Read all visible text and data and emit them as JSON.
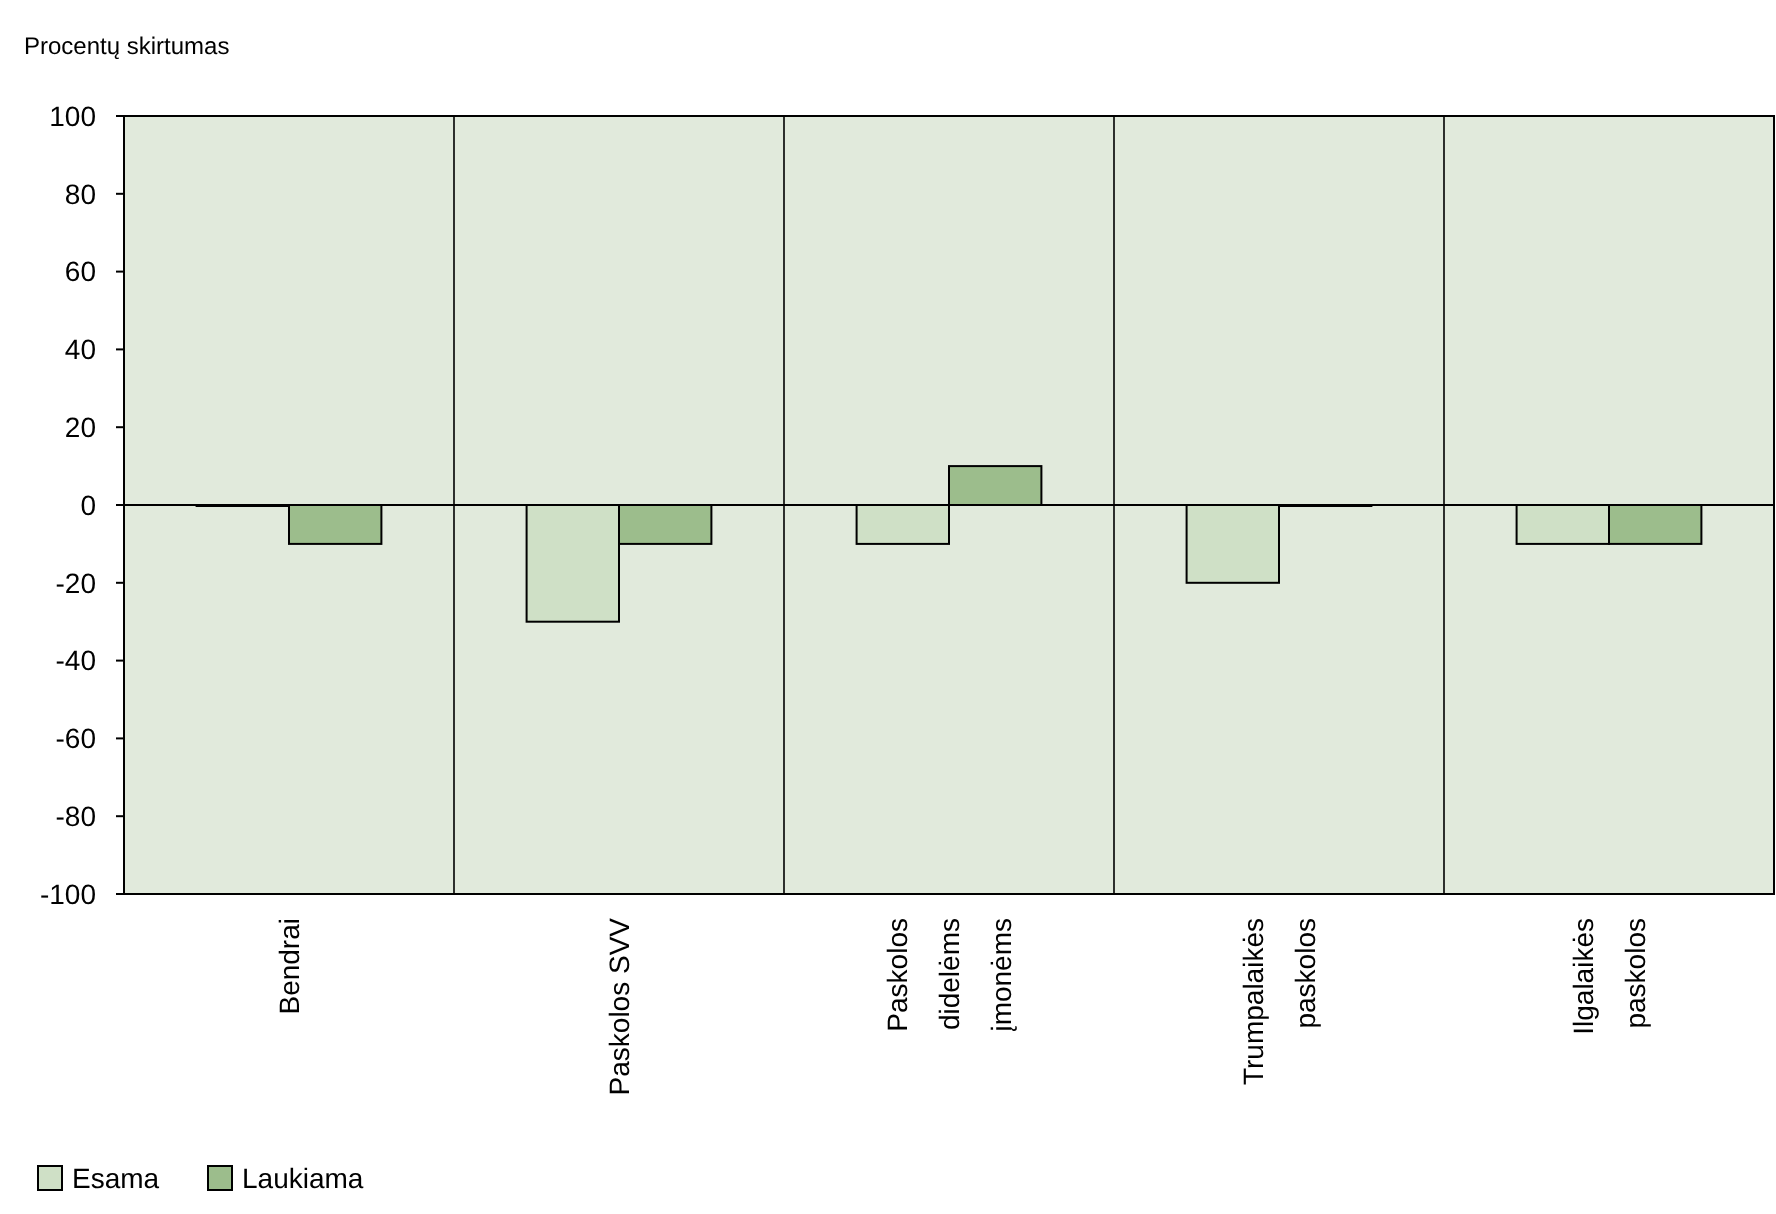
{
  "chart_data": {
    "type": "bar",
    "title": "Procentų skirtumas",
    "categories": [
      "Bendrai",
      "Paskolos SVV",
      "Paskolos didelėms įmonėms",
      "Trumpalaikės paskolos",
      "Ilgalaikės paskolos"
    ],
    "series": [
      {
        "name": "Esama",
        "color": "#cfe0c6",
        "values": [
          0,
          -30,
          -10,
          -20,
          -10
        ]
      },
      {
        "name": "Laukiama",
        "color": "#9cbd8c",
        "values": [
          -10,
          -10,
          10,
          0,
          -10
        ]
      }
    ],
    "ylim": [
      -100,
      100
    ],
    "yticks": [
      -100,
      -80,
      -60,
      -40,
      -20,
      0,
      20,
      40,
      60,
      80,
      100
    ],
    "grid": "x",
    "legend": "bottom left"
  }
}
